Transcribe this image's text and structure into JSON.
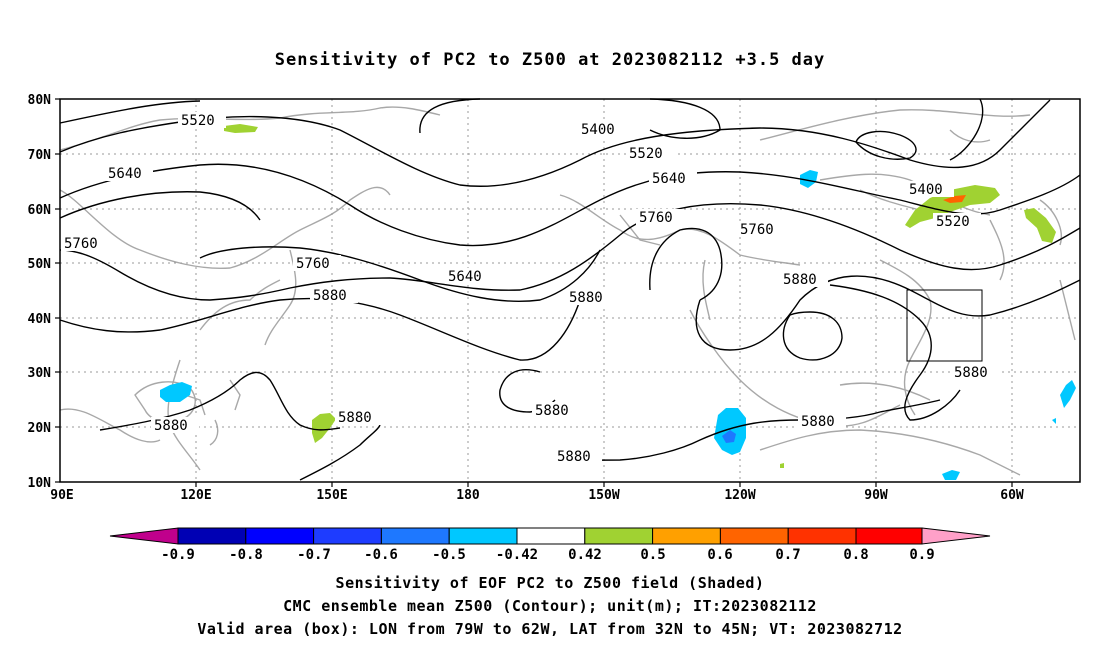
{
  "title": "Sensitivity of PC2 to Z500 at 2023082112 +3.5 day",
  "map": {
    "lat_labels": [
      "80N",
      "70N",
      "60N",
      "50N",
      "40N",
      "30N",
      "20N",
      "10N"
    ],
    "lon_labels": [
      "90E",
      "120E",
      "150E",
      "180",
      "150W",
      "120W",
      "90W",
      "60W"
    ],
    "contour_labels": [
      "5520",
      "5400",
      "5520",
      "5640",
      "5640",
      "5400",
      "5520",
      "5760",
      "5760",
      "5760",
      "5760",
      "5640",
      "5880",
      "5880",
      "5880",
      "5880",
      "5880",
      "5880",
      "5880",
      "5880",
      "5880"
    ],
    "valid_box": {
      "lon_from": "79W",
      "lon_to": "62W",
      "lat_from": "32N",
      "lat_to": "45N"
    }
  },
  "colorbar": {
    "labels": [
      "-0.9",
      "-0.8",
      "-0.7",
      "-0.6",
      "-0.5",
      "-0.42",
      "0.42",
      "0.5",
      "0.6",
      "0.7",
      "0.8",
      "0.9"
    ],
    "colors": [
      "#c0008c",
      "#0000b4",
      "#0000ff",
      "#1e3cff",
      "#1e78ff",
      "#00c8ff",
      "#ffffff",
      "#a0d232",
      "#ffa000",
      "#ff6400",
      "#ff3200",
      "#ff0000",
      "#ffa0c8"
    ]
  },
  "footer": {
    "line1": "Sensitivity of EOF PC2 to Z500 field (Shaded)",
    "line2": "CMC ensemble mean Z500 (Contour); unit(m); IT:2023082112",
    "line3": "Valid area (box): LON from 79W to 62W, LAT from 32N to 45N; VT: 2023082712"
  }
}
